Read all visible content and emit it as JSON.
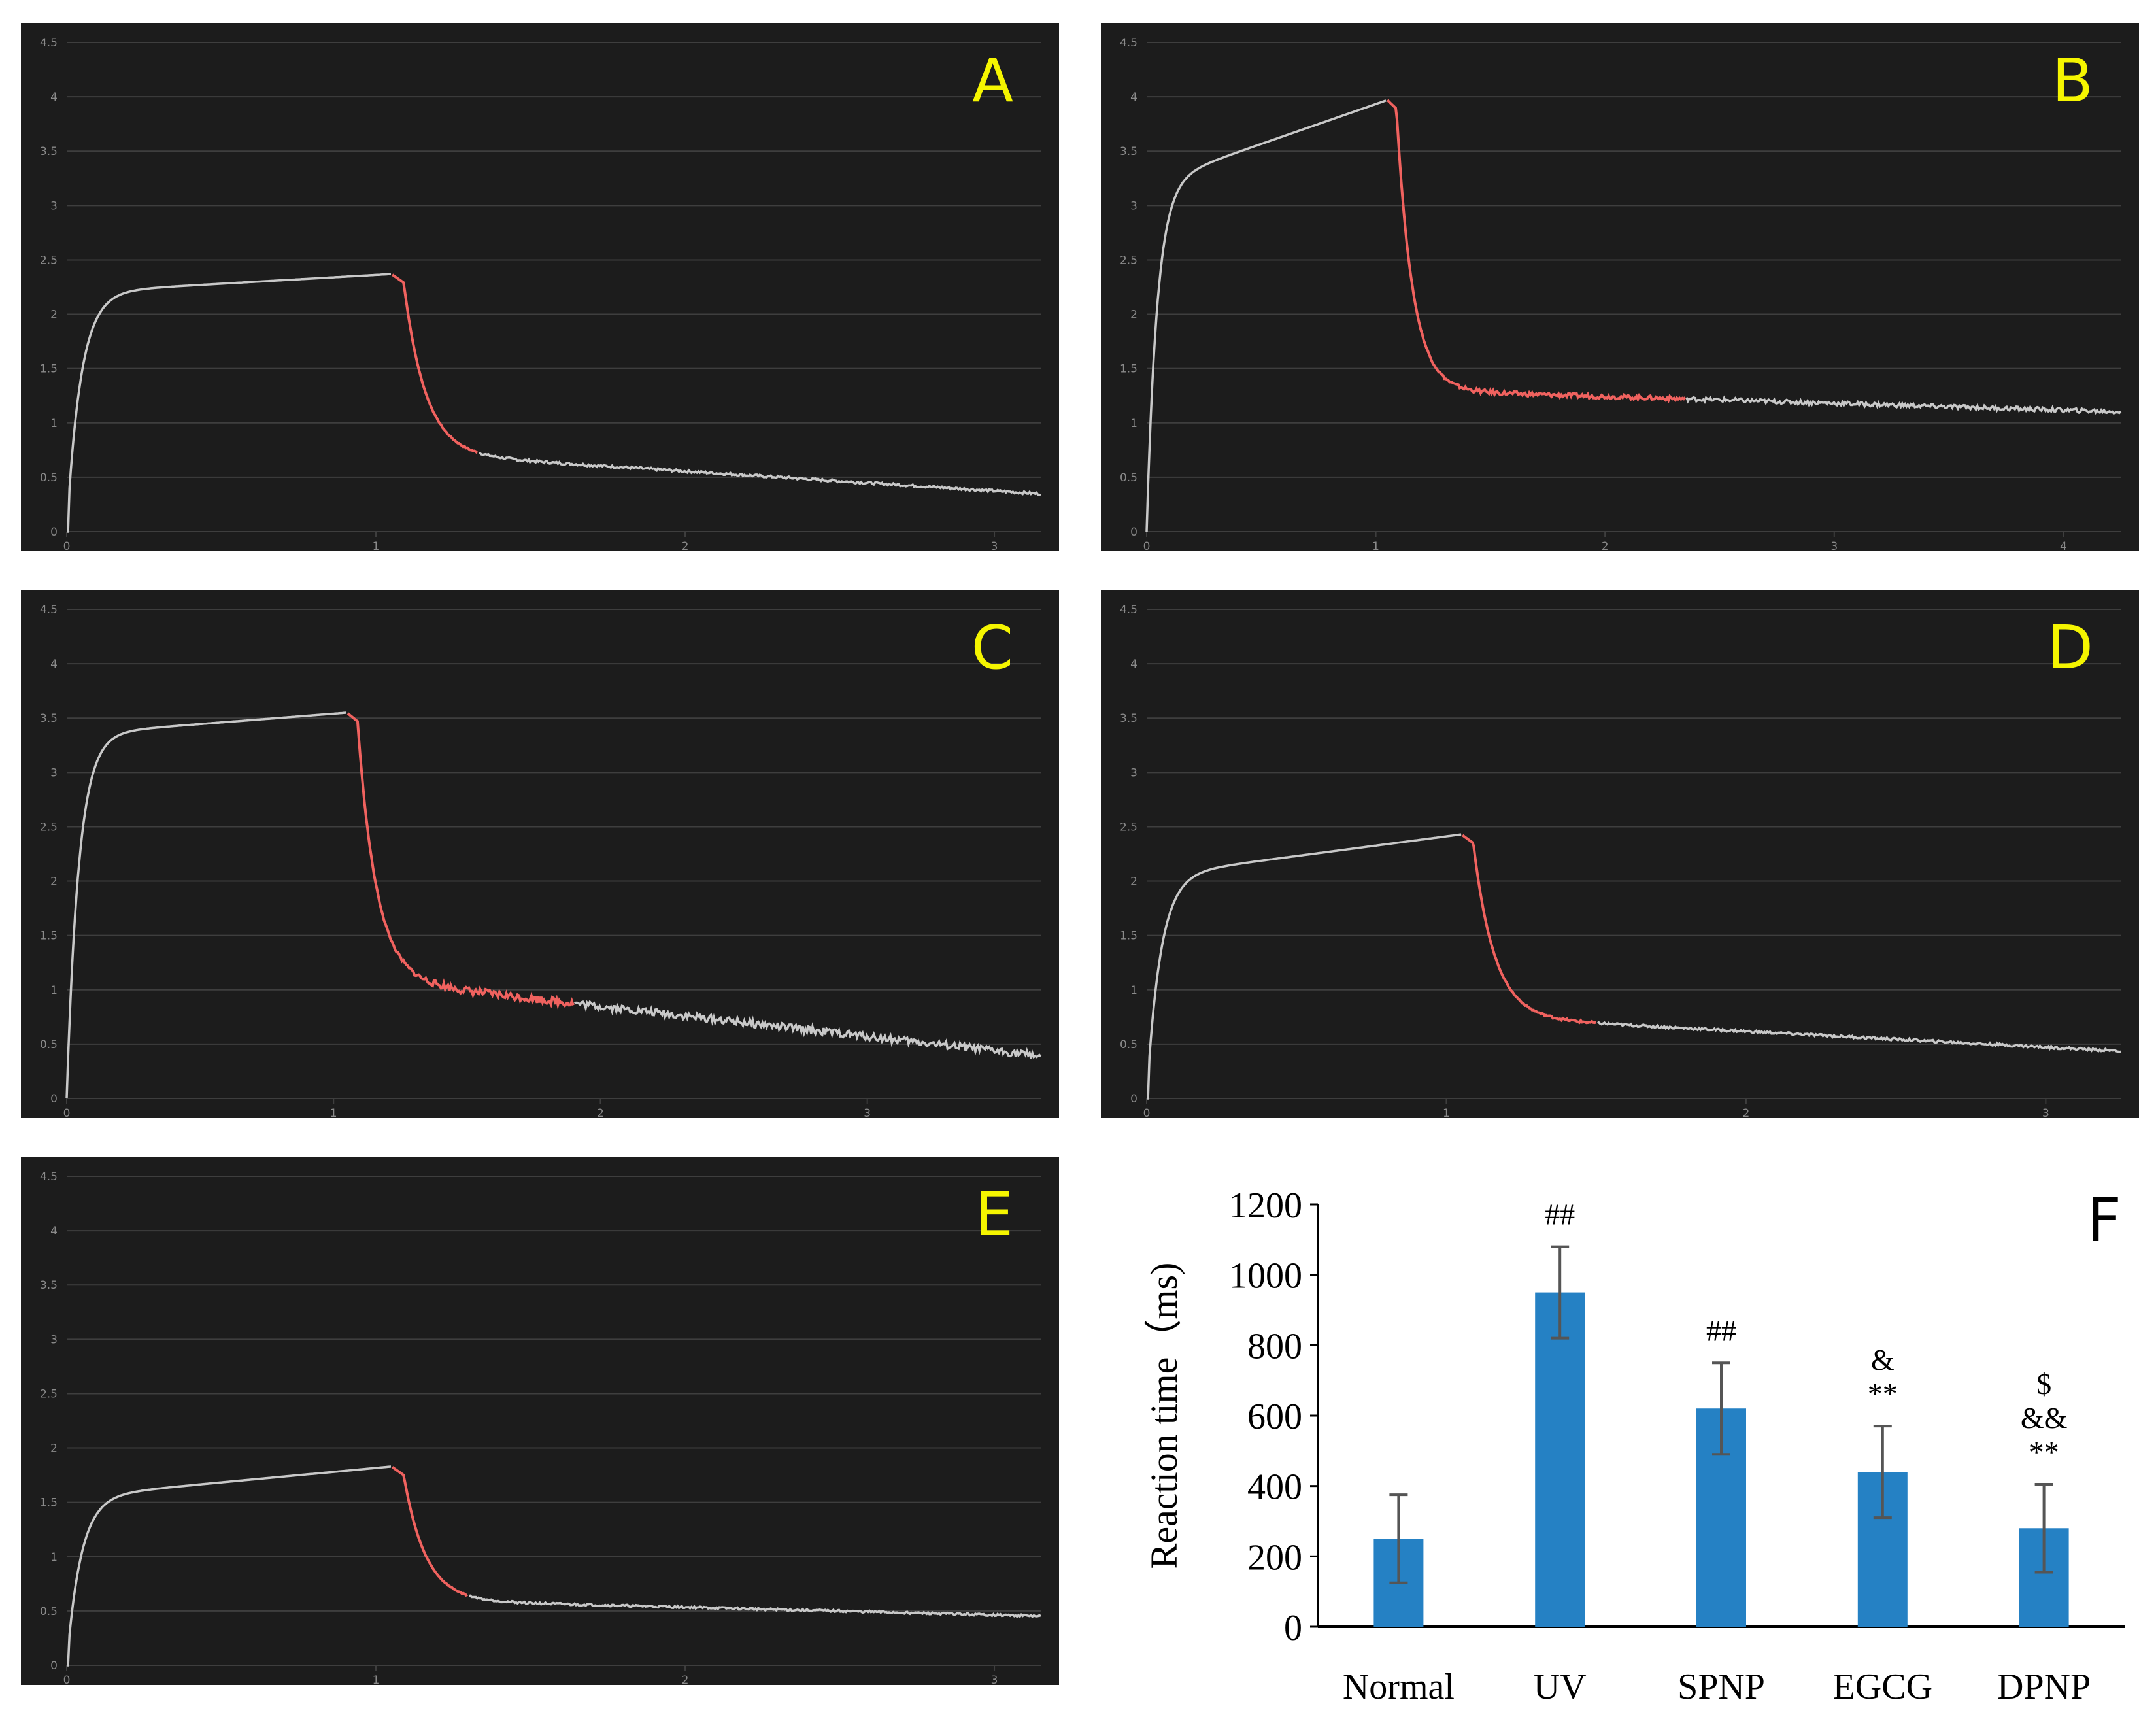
{
  "panels": [
    {
      "id": "A",
      "label": "A",
      "label_color": "#f5f500",
      "ymax": 4.5,
      "yticks": [
        "0",
        "0.5",
        "1",
        "1.5",
        "2",
        "2.5",
        "3",
        "3.5",
        "4",
        "4.5"
      ],
      "xmax": 3.15,
      "xticks": [
        "0",
        "1",
        "2",
        "3"
      ],
      "plateau": 2.37,
      "rise_level": 2.2,
      "drop_start": 1.05,
      "drop_end": 1.33,
      "drop_to": 0.72,
      "end_level": 0.34,
      "noise": 0.012
    },
    {
      "id": "B",
      "label": "B",
      "label_color": "#f5f500",
      "ymax": 4.5,
      "yticks": [
        "0",
        "0.5",
        "1",
        "1.5",
        "2",
        "2.5",
        "3",
        "3.5",
        "4",
        "4.5"
      ],
      "xmax": 4.25,
      "xticks": [
        "0",
        "1",
        "2",
        "3",
        "4"
      ],
      "plateau": 3.97,
      "rise_level": 3.2,
      "drop_start": 1.05,
      "drop_end": 2.35,
      "drop_to": 1.3,
      "end_level": 1.1,
      "noise": 0.02
    },
    {
      "id": "C",
      "label": "C",
      "label_color": "#f5f500",
      "ymax": 4.5,
      "yticks": [
        "0",
        "0.5",
        "1",
        "1.5",
        "2",
        "2.5",
        "3",
        "3.5",
        "4",
        "4.5"
      ],
      "xmax": 3.65,
      "xticks": [
        "0",
        "1",
        "2",
        "3"
      ],
      "plateau": 3.55,
      "rise_level": 3.35,
      "drop_start": 1.05,
      "drop_end": 1.9,
      "drop_to": 1.1,
      "end_level": 0.38,
      "noise": 0.035
    },
    {
      "id": "D",
      "label": "D",
      "label_color": "#f5f500",
      "ymax": 4.5,
      "yticks": [
        "0",
        "0.5",
        "1",
        "1.5",
        "2",
        "2.5",
        "3",
        "3.5",
        "4",
        "4.5"
      ],
      "xmax": 3.25,
      "xticks": [
        "0",
        "1",
        "2",
        "3"
      ],
      "plateau": 2.43,
      "rise_level": 2.05,
      "drop_start": 1.05,
      "drop_end": 1.5,
      "drop_to": 0.75,
      "end_level": 0.43,
      "noise": 0.012
    },
    {
      "id": "E",
      "label": "E",
      "label_color": "#f5f500",
      "ymax": 4.5,
      "yticks": [
        "0",
        "0.5",
        "1",
        "1.5",
        "2",
        "2.5",
        "3",
        "3.5",
        "4",
        "4.5"
      ],
      "xmax": 3.15,
      "xticks": [
        "0",
        "1",
        "2",
        "3"
      ],
      "plateau": 1.83,
      "rise_level": 1.55,
      "drop_start": 1.05,
      "drop_end": 1.3,
      "drop_to": 0.6,
      "end_level": 0.45,
      "noise": 0.01
    }
  ],
  "chart_data": {
    "type": "bar",
    "panel_label": "F",
    "title": "",
    "xlabel": "",
    "ylabel": "Reaction time（ms)",
    "categories": [
      "Normal",
      "UV",
      "SPNP",
      "EGCG",
      "DPNP"
    ],
    "values": [
      250,
      950,
      620,
      440,
      280
    ],
    "errors": [
      125,
      130,
      130,
      130,
      125
    ],
    "ylim": [
      0,
      1200
    ],
    "yticks": [
      "0",
      "200",
      "400",
      "600",
      "800",
      "1000",
      "1200"
    ],
    "annotations": [
      {
        "category": "UV",
        "lines": [
          "##"
        ]
      },
      {
        "category": "SPNP",
        "lines": [
          "##"
        ]
      },
      {
        "category": "EGCG",
        "lines": [
          "&",
          "**"
        ]
      },
      {
        "category": "DPNP",
        "lines": [
          "$",
          "&&",
          "**"
        ]
      }
    ],
    "bar_color": "#2581c4"
  },
  "colors": {
    "panel_bg": "#1c1c1c",
    "grid": "#3e3e3e",
    "trace": "#c8c8c8",
    "highlight": "#f0625f",
    "axis_text": "#8a8a8a"
  }
}
